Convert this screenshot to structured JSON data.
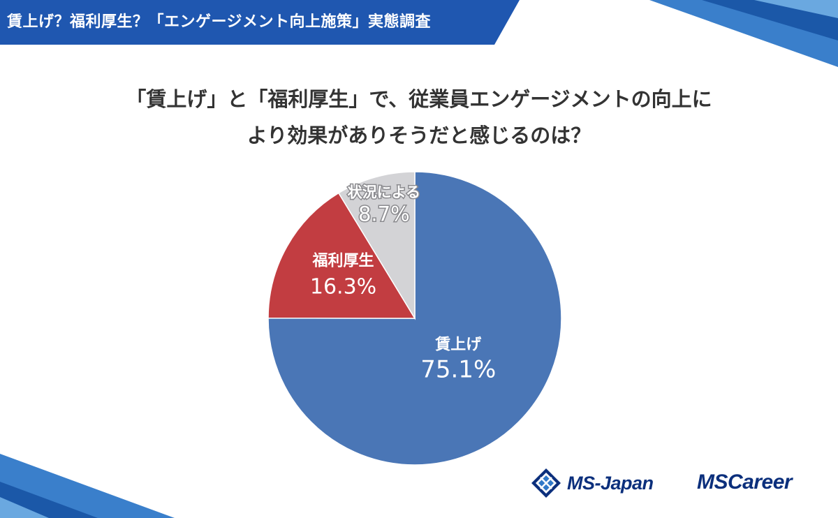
{
  "header": {
    "title": "賃上げ？福利厚生？「エンゲージメント向上施策」実態調査"
  },
  "question": {
    "line1": "「賃上げ」と「福利厚生」で、従業員エンゲージメントの向上に",
    "line2": "より効果がありそうだと感じるのは？"
  },
  "chart_data": {
    "type": "pie",
    "title": "",
    "slices": [
      {
        "label": "賃上げ",
        "value": 75.1,
        "value_label": "75.1%",
        "color": "#4a76b6"
      },
      {
        "label": "福利厚生",
        "value": 16.3,
        "value_label": "16.3%",
        "color": "#c23d41"
      },
      {
        "label": "状況による",
        "value": 8.7,
        "value_label": "8.7%",
        "color": "#d3d3d6"
      }
    ],
    "start": "12 o'clock, clockwise",
    "legend": "none (labels inside slices)"
  },
  "logos": {
    "ms_japan": "MS-Japan",
    "ms_career": "MSCareer"
  },
  "colors": {
    "banner": "#1f57b0",
    "logo": "#0b2f7c"
  }
}
